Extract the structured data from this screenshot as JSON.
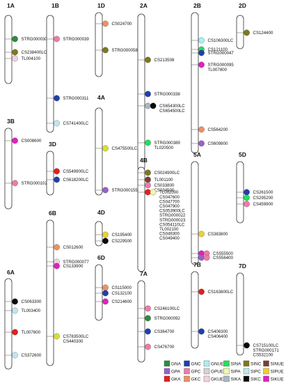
{
  "legend": [
    {
      "label": "GNA",
      "color": "#2e8b3e"
    },
    {
      "label": "GNC",
      "color": "#1f3fb0"
    },
    {
      "label": "GNUE",
      "color": "#a8f0f0"
    },
    {
      "label": "SINA",
      "color": "#22e05a"
    },
    {
      "label": "SINC",
      "color": "#7a7a1e"
    },
    {
      "label": "SINUE",
      "color": "#7a4030"
    },
    {
      "label": "GPA",
      "color": "#9a5fd0"
    },
    {
      "label": "GPC",
      "color": "#f07aa8"
    },
    {
      "label": "GPUE",
      "color": "#d4d4d4"
    },
    {
      "label": "SIPA",
      "color": "#f5f5b0"
    },
    {
      "label": "SIPC",
      "color": "#bfe8f0"
    },
    {
      "label": "SIPUE",
      "color": "#f0d030"
    },
    {
      "label": "GKA",
      "color": "#e61e1e"
    },
    {
      "label": "GKC",
      "color": "#f09060"
    },
    {
      "label": "GKUE",
      "color": "#f5d0e0"
    },
    {
      "label": "SIKA",
      "color": "#a8b8c0"
    },
    {
      "label": "SIKC",
      "color": "#0a0a0a"
    },
    {
      "label": "SIKUE",
      "color": "#e020c0"
    }
  ],
  "chromosomes": [
    {
      "name": "1A",
      "markers": [
        {
          "labels": [
            "STRG000030"
          ],
          "colors": [
            "#2e8b3e"
          ]
        },
        {
          "labels": [
            "CS238400LC"
          ],
          "colors": [
            "#7a7a1e"
          ]
        },
        {
          "labels": [
            "TL004100"
          ],
          "colors": [
            "#f5d0e0"
          ]
        }
      ]
    },
    {
      "name": "1B",
      "markers": [
        {
          "labels": [
            "STRG000039"
          ],
          "colors": [
            "#f07aa8"
          ]
        },
        {
          "labels": [
            "STRG000311"
          ],
          "colors": [
            "#1f3fb0"
          ]
        },
        {
          "labels": [
            "CS741400LC"
          ],
          "colors": [
            "#bfe8f0"
          ]
        }
      ]
    },
    {
      "name": "1D",
      "markers": [
        {
          "labels": [
            "CS024700"
          ],
          "colors": [
            "#f09060"
          ]
        },
        {
          "labels": [
            "STRG000058"
          ],
          "colors": [
            "#7a7a1e"
          ]
        }
      ]
    },
    {
      "name": "2A",
      "markers": [
        {
          "labels": [
            "CS213508"
          ],
          "colors": [
            "#7a7a1e"
          ]
        },
        {
          "labels": [
            "STRG000338"
          ],
          "colors": [
            "#1f3fb0"
          ]
        },
        {
          "labels": [
            "CS654300LC",
            "CS654500LC"
          ],
          "colors": [
            "#a8b8c0",
            "#0a0a0a"
          ]
        },
        {
          "labels": [
            "STRG000389",
            "TL020500"
          ],
          "colors": [
            "#22e05a"
          ]
        }
      ]
    },
    {
      "name": "2B",
      "markers": [
        {
          "labels": [
            "CS106300LC"
          ],
          "colors": [
            "#a8f0f0"
          ]
        },
        {
          "labels": [
            "CS121100"
          ],
          "colors": [
            "#22e05a"
          ]
        },
        {
          "labels": [
            "STRG000047"
          ],
          "colors": [
            "#1f3fb0"
          ]
        },
        {
          "labels": [
            "STRG000095",
            "TL007800"
          ],
          "colors": [
            "#e020c0"
          ]
        },
        {
          "labels": [
            "CS564200"
          ],
          "colors": [
            "#f09060"
          ]
        },
        {
          "labels": [
            "CS609800"
          ],
          "colors": [
            "#9a5fd0"
          ]
        }
      ]
    },
    {
      "name": "2D",
      "markers": [
        {
          "labels": [
            "CS124400"
          ],
          "colors": [
            "#7a7a1e"
          ]
        }
      ]
    },
    {
      "name": "3B",
      "markers": [
        {
          "labels": [
            "CS008600"
          ],
          "colors": [
            "#e020c0"
          ]
        },
        {
          "labels": [
            "STRG000102"
          ],
          "colors": [
            "#f07aa8"
          ]
        }
      ]
    },
    {
      "name": "3D",
      "markers": [
        {
          "labels": [
            "CS549900LC"
          ],
          "colors": [
            "#e61e1e"
          ]
        },
        {
          "labels": [
            "CS618200LC"
          ],
          "colors": [
            "#1f3fb0"
          ]
        }
      ]
    },
    {
      "name": "4A",
      "markers": [
        {
          "labels": [
            "CS475500LC"
          ],
          "colors": [
            "#d8e030"
          ]
        },
        {
          "labels": [
            "STRG000155"
          ],
          "colors": [
            "#9a5fd0"
          ]
        }
      ]
    },
    {
      "name": "4B",
      "markers": [
        {
          "labels": [
            "CS024900LC"
          ],
          "colors": [
            "#7a7a1e"
          ]
        },
        {
          "labels": [
            "TL001100"
          ],
          "colors": [
            "#7a4030"
          ]
        },
        {
          "labels": [
            "CS033800",
            "CS034500"
          ],
          "colors": [
            "#f07aa8"
          ]
        },
        {
          "labels": [
            "TL002000",
            "CS047600",
            "CS047700",
            "CS047900",
            "CS053900LC",
            "STRG000022",
            "STRG000023",
            "CS054110LC",
            "TL002100",
            "CS049300",
            "CS049400"
          ],
          "colors": [
            "#e61e1e",
            "#f5f5b0"
          ]
        }
      ]
    },
    {
      "name": "4D",
      "markers": [
        {
          "labels": [
            "CS195400"
          ],
          "colors": [
            "#f0d030"
          ]
        },
        {
          "labels": [
            "CS229500"
          ],
          "colors": [
            "#0a0a0a"
          ]
        }
      ]
    },
    {
      "name": "5A",
      "markers": [
        {
          "labels": [
            "CS383800"
          ],
          "colors": [
            "#f0d030"
          ]
        },
        {
          "labels": [
            "CS555500"
          ],
          "colors": [
            "#e020c0",
            "#f07aa8"
          ]
        },
        {
          "labels": [
            "CS556400"
          ],
          "colors": [
            "#9a5fd0",
            "#f07aa8"
          ]
        }
      ]
    },
    {
      "name": "5D",
      "markers": [
        {
          "labels": [
            "CS261500"
          ],
          "colors": [
            "#1f3fb0"
          ]
        },
        {
          "labels": [
            "CS295200"
          ],
          "colors": [
            "#22e05a"
          ]
        },
        {
          "labels": [
            "CS459900"
          ],
          "colors": [
            "#f07aa8"
          ]
        }
      ]
    },
    {
      "name": "6A",
      "markers": [
        {
          "labels": [
            "CS063300"
          ],
          "colors": [
            "#0a0a0a"
          ]
        },
        {
          "labels": [
            "TL003400"
          ],
          "colors": [
            "#bfe8f0"
          ]
        },
        {
          "labels": [
            "TL007600"
          ],
          "colors": [
            "#e61e1e"
          ]
        },
        {
          "labels": [
            "CS372600"
          ],
          "colors": [
            "#bfe8f0"
          ]
        }
      ]
    },
    {
      "name": "6B",
      "markers": [
        {
          "labels": [
            "CS012600"
          ],
          "colors": [
            "#f09060"
          ]
        },
        {
          "labels": [
            "STRG000077"
          ],
          "colors": [
            "#f5d0e0"
          ]
        },
        {
          "labels": [
            "CS133900"
          ],
          "colors": [
            "#e020c0"
          ]
        },
        {
          "labels": [
            "CS783500LC",
            "CS440300"
          ],
          "colors": [
            "#d8e030"
          ]
        }
      ]
    },
    {
      "name": "6D",
      "markers": [
        {
          "labels": [
            "CS115000"
          ],
          "colors": [
            "#f09060"
          ]
        },
        {
          "labels": [
            "CS132100"
          ],
          "colors": [
            "#1f3fb0"
          ]
        },
        {
          "labels": [
            "CS214600"
          ],
          "colors": [
            "#e020c0"
          ]
        }
      ]
    },
    {
      "name": "7A",
      "markers": [
        {
          "labels": [
            "CS246100LC"
          ],
          "colors": [
            "#f07aa8"
          ]
        },
        {
          "labels": [
            "STRG000092"
          ],
          "colors": [
            "#2e8b3e"
          ]
        },
        {
          "labels": [
            "CS364700"
          ],
          "colors": [
            "#1f3fb0"
          ]
        },
        {
          "labels": [
            "CS476700"
          ],
          "colors": [
            "#f07aa8"
          ]
        }
      ]
    },
    {
      "name": "7B",
      "markers": [
        {
          "labels": [
            "CS163800LC"
          ],
          "colors": [
            "#e61e1e"
          ]
        },
        {
          "labels": [
            "CS406300",
            "CS406400"
          ],
          "colors": [
            "#1f3fb0"
          ]
        }
      ]
    },
    {
      "name": "7D",
      "markers": [
        {
          "labels": [
            "CS715100LC",
            "STRG000171",
            "CS532100"
          ],
          "colors": [
            "#0a0a0a"
          ]
        }
      ]
    }
  ]
}
